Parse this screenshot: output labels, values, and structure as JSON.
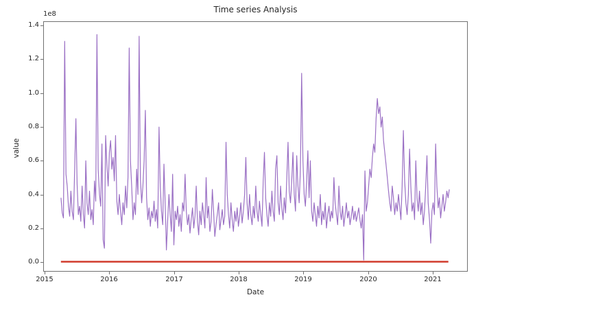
{
  "figure": {
    "background_color": "#ffffff",
    "spine_color": "#707070",
    "text_color": "#262626"
  },
  "chart_data": {
    "type": "line",
    "title": "Time series Analysis",
    "xlabel": "Date",
    "ylabel": "value",
    "y_offset_label": "1e8",
    "grid": false,
    "legend": "none",
    "x_tick_labels": [
      "2015",
      "2016",
      "2017",
      "2018",
      "2019",
      "2020",
      "2021"
    ],
    "y_tick_labels": [
      "0.0",
      "0.2",
      "0.4",
      "0.6",
      "0.8",
      "1.0",
      "1.2",
      "1.4"
    ],
    "xlim": [
      2014.98,
      2021.54
    ],
    "ylim_1e8": [
      -0.055,
      1.425
    ],
    "y_unit_multiplier": 100000000,
    "series": [
      {
        "name": "value",
        "color": "#9a6fc4",
        "line_width": 1.2,
        "sampling": "weekly-estimate",
        "x_start_year": 2015.245,
        "x_step_years": 0.019231,
        "values_1e8": [
          0.38,
          0.29,
          0.26,
          1.31,
          0.52,
          0.45,
          0.33,
          0.27,
          0.42,
          0.3,
          0.25,
          0.55,
          0.85,
          0.46,
          0.28,
          0.33,
          0.24,
          0.45,
          0.28,
          0.2,
          0.6,
          0.35,
          0.28,
          0.42,
          0.25,
          0.31,
          0.22,
          0.48,
          0.36,
          1.35,
          0.55,
          0.4,
          0.33,
          0.7,
          0.13,
          0.08,
          0.75,
          0.58,
          0.45,
          0.65,
          0.72,
          0.55,
          0.62,
          0.48,
          0.75,
          0.36,
          0.28,
          0.4,
          0.3,
          0.22,
          0.35,
          0.28,
          0.45,
          0.32,
          0.5,
          1.27,
          0.6,
          0.45,
          0.25,
          0.35,
          0.28,
          0.55,
          0.4,
          1.34,
          0.5,
          0.35,
          0.45,
          0.6,
          0.9,
          0.38,
          0.25,
          0.32,
          0.21,
          0.3,
          0.26,
          0.36,
          0.24,
          0.31,
          0.2,
          0.8,
          0.45,
          0.3,
          0.22,
          0.58,
          0.35,
          0.07,
          0.25,
          0.4,
          0.28,
          0.18,
          0.52,
          0.1,
          0.3,
          0.25,
          0.33,
          0.21,
          0.28,
          0.18,
          0.35,
          0.3,
          0.52,
          0.3,
          0.22,
          0.28,
          0.17,
          0.25,
          0.32,
          0.2,
          0.27,
          0.45,
          0.24,
          0.16,
          0.3,
          0.22,
          0.35,
          0.28,
          0.2,
          0.5,
          0.26,
          0.33,
          0.18,
          0.24,
          0.43,
          0.3,
          0.15,
          0.22,
          0.28,
          0.35,
          0.19,
          0.25,
          0.31,
          0.22,
          0.27,
          0.71,
          0.4,
          0.28,
          0.2,
          0.35,
          0.25,
          0.18,
          0.3,
          0.24,
          0.32,
          0.21,
          0.27,
          0.35,
          0.23,
          0.3,
          0.4,
          0.62,
          0.35,
          0.25,
          0.4,
          0.28,
          0.22,
          0.33,
          0.26,
          0.45,
          0.3,
          0.24,
          0.36,
          0.28,
          0.21,
          0.48,
          0.65,
          0.38,
          0.28,
          0.21,
          0.35,
          0.27,
          0.42,
          0.3,
          0.24,
          0.55,
          0.63,
          0.35,
          0.28,
          0.45,
          0.32,
          0.25,
          0.38,
          0.29,
          0.5,
          0.71,
          0.42,
          0.35,
          0.48,
          0.65,
          0.4,
          0.3,
          0.63,
          0.45,
          0.35,
          0.55,
          1.12,
          0.6,
          0.4,
          0.33,
          0.48,
          0.66,
          0.38,
          0.6,
          0.3,
          0.24,
          0.35,
          0.28,
          0.21,
          0.33,
          0.26,
          0.4,
          0.22,
          0.3,
          0.25,
          0.35,
          0.2,
          0.28,
          0.33,
          0.24,
          0.3,
          0.26,
          0.5,
          0.35,
          0.28,
          0.22,
          0.45,
          0.3,
          0.25,
          0.33,
          0.21,
          0.28,
          0.35,
          0.26,
          0.3,
          0.22,
          0.27,
          0.33,
          0.25,
          0.3,
          0.24,
          0.28,
          0.32,
          0.25,
          0.2,
          0.28,
          0.01,
          0.54,
          0.3,
          0.35,
          0.45,
          0.55,
          0.5,
          0.62,
          0.7,
          0.65,
          0.85,
          0.97,
          0.88,
          0.92,
          0.8,
          0.86,
          0.72,
          0.65,
          0.58,
          0.5,
          0.42,
          0.35,
          0.3,
          0.45,
          0.38,
          0.28,
          0.35,
          0.3,
          0.4,
          0.33,
          0.25,
          0.45,
          0.78,
          0.48,
          0.35,
          0.28,
          0.4,
          0.67,
          0.45,
          0.3,
          0.35,
          0.25,
          0.6,
          0.38,
          0.3,
          0.42,
          0.28,
          0.35,
          0.22,
          0.3,
          0.45,
          0.63,
          0.35,
          0.25,
          0.11,
          0.3,
          0.35,
          0.28,
          0.7,
          0.45,
          0.32,
          0.38,
          0.26,
          0.33,
          0.4,
          0.3,
          0.35,
          0.42,
          0.38,
          0.43
        ]
      },
      {
        "name": "baseline",
        "color": "#d03a2c",
        "line_width": 2.5,
        "points_year_value_1e8": [
          [
            2015.244,
            0.0
          ],
          [
            2021.25,
            0.0
          ]
        ]
      }
    ]
  }
}
